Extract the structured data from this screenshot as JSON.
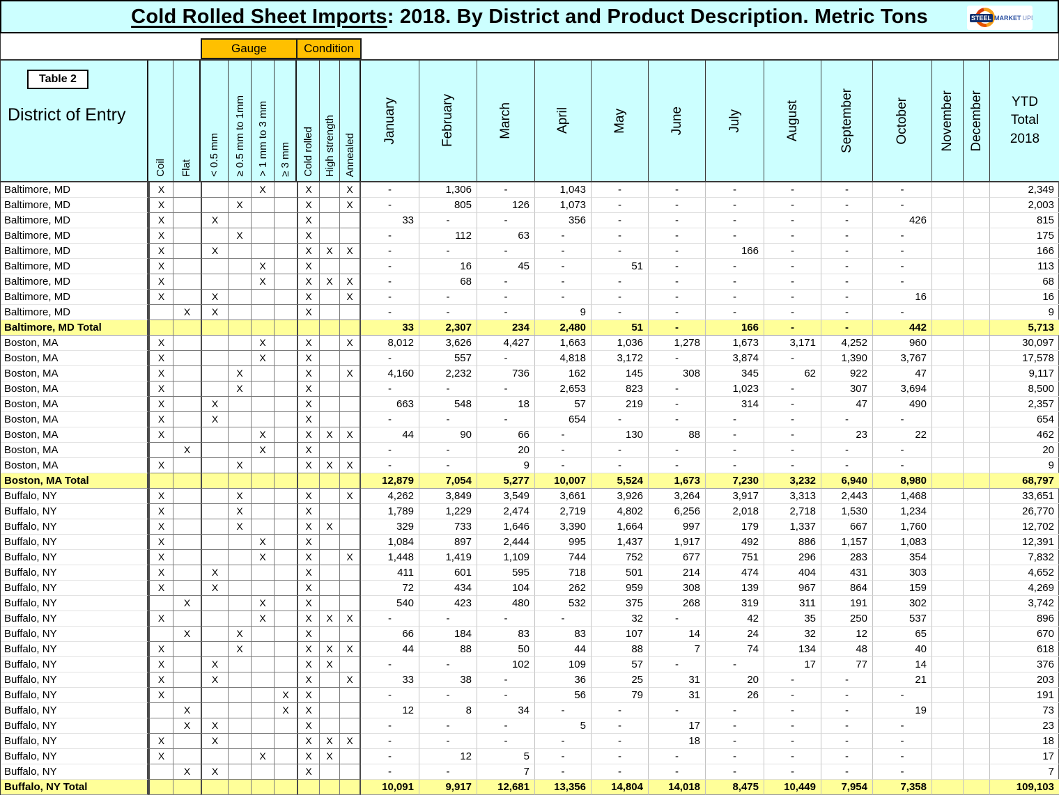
{
  "title": {
    "main": "Cold Rolled Sheet Imports",
    "rest": ": 2018. By District and Product Description. Metric Tons"
  },
  "logo": {
    "steel": "STEEL",
    "market": "MARKET",
    "update": "UPDATE"
  },
  "table_label": "Table 2",
  "group_headers": {
    "gauge": "Gauge",
    "condition": "Condition"
  },
  "flag_mark": "X",
  "colors": {
    "header_bg": "#CCFFFF",
    "total_row_bg": "#FFFF99",
    "group_header_bg": "#FFC000",
    "logo_navy": "#14306E",
    "logo_orange": "#E65300"
  },
  "columns": {
    "district": "District of Entry",
    "flags": [
      "Coil",
      "Flat",
      "< 0.5 mm",
      "≥ 0.5 mm to 1mm",
      "> 1 mm to 3 mm",
      "≥ 3 mm",
      "Cold rolled",
      "High strength",
      "Annealed"
    ],
    "months": [
      "January",
      "February",
      "March",
      "April",
      "May",
      "June",
      "July",
      "August",
      "September",
      "October",
      "November",
      "December"
    ],
    "ytd_lines": [
      "YTD",
      "Total",
      "2018"
    ]
  },
  "sections": [
    {
      "name": "Baltimore, MD",
      "total_label": "Baltimore, MD Total",
      "rows": [
        {
          "flags": [
            1,
            0,
            0,
            0,
            1,
            0,
            1,
            0,
            1
          ],
          "values": [
            "-",
            "1,306",
            "-",
            "1,043",
            "-",
            "-",
            "-",
            "-",
            "-",
            "-",
            "",
            ""
          ],
          "ytd": "2,349"
        },
        {
          "flags": [
            1,
            0,
            0,
            1,
            0,
            0,
            1,
            0,
            1
          ],
          "values": [
            "-",
            "805",
            "126",
            "1,073",
            "-",
            "-",
            "-",
            "-",
            "-",
            "-",
            "",
            ""
          ],
          "ytd": "2,003"
        },
        {
          "flags": [
            1,
            0,
            1,
            0,
            0,
            0,
            1,
            0,
            0
          ],
          "values": [
            "33",
            "-",
            "-",
            "356",
            "-",
            "-",
            "-",
            "-",
            "-",
            "426",
            "",
            ""
          ],
          "ytd": "815"
        },
        {
          "flags": [
            1,
            0,
            0,
            1,
            0,
            0,
            1,
            0,
            0
          ],
          "values": [
            "-",
            "112",
            "63",
            "-",
            "-",
            "-",
            "-",
            "-",
            "-",
            "-",
            "",
            ""
          ],
          "ytd": "175"
        },
        {
          "flags": [
            1,
            0,
            1,
            0,
            0,
            0,
            1,
            1,
            1
          ],
          "values": [
            "-",
            "-",
            "-",
            "-",
            "-",
            "-",
            "166",
            "-",
            "-",
            "-",
            "",
            ""
          ],
          "ytd": "166"
        },
        {
          "flags": [
            1,
            0,
            0,
            0,
            1,
            0,
            1,
            0,
            0
          ],
          "values": [
            "-",
            "16",
            "45",
            "-",
            "51",
            "-",
            "-",
            "-",
            "-",
            "-",
            "",
            ""
          ],
          "ytd": "113"
        },
        {
          "flags": [
            1,
            0,
            0,
            0,
            1,
            0,
            1,
            1,
            1
          ],
          "values": [
            "-",
            "68",
            "-",
            "-",
            "-",
            "-",
            "-",
            "-",
            "-",
            "-",
            "",
            ""
          ],
          "ytd": "68"
        },
        {
          "flags": [
            1,
            0,
            1,
            0,
            0,
            0,
            1,
            0,
            1
          ],
          "values": [
            "-",
            "-",
            "-",
            "-",
            "-",
            "-",
            "-",
            "-",
            "-",
            "16",
            "",
            ""
          ],
          "ytd": "16"
        },
        {
          "flags": [
            0,
            1,
            1,
            0,
            0,
            0,
            1,
            0,
            0
          ],
          "values": [
            "-",
            "-",
            "-",
            "9",
            "-",
            "-",
            "-",
            "-",
            "-",
            "-",
            "",
            ""
          ],
          "ytd": "9"
        }
      ],
      "total": {
        "values": [
          "33",
          "2,307",
          "234",
          "2,480",
          "51",
          "-",
          "166",
          "-",
          "-",
          "442",
          "",
          ""
        ],
        "ytd": "5,713"
      }
    },
    {
      "name": "Boston, MA",
      "total_label": "Boston, MA Total",
      "rows": [
        {
          "flags": [
            1,
            0,
            0,
            0,
            1,
            0,
            1,
            0,
            1
          ],
          "values": [
            "8,012",
            "3,626",
            "4,427",
            "1,663",
            "1,036",
            "1,278",
            "1,673",
            "3,171",
            "4,252",
            "960",
            "",
            ""
          ],
          "ytd": "30,097"
        },
        {
          "flags": [
            1,
            0,
            0,
            0,
            1,
            0,
            1,
            0,
            0
          ],
          "values": [
            "-",
            "557",
            "-",
            "4,818",
            "3,172",
            "-",
            "3,874",
            "-",
            "1,390",
            "3,767",
            "",
            ""
          ],
          "ytd": "17,578"
        },
        {
          "flags": [
            1,
            0,
            0,
            1,
            0,
            0,
            1,
            0,
            1
          ],
          "values": [
            "4,160",
            "2,232",
            "736",
            "162",
            "145",
            "308",
            "345",
            "62",
            "922",
            "47",
            "",
            ""
          ],
          "ytd": "9,117"
        },
        {
          "flags": [
            1,
            0,
            0,
            1,
            0,
            0,
            1,
            0,
            0
          ],
          "values": [
            "-",
            "-",
            "-",
            "2,653",
            "823",
            "-",
            "1,023",
            "-",
            "307",
            "3,694",
            "",
            ""
          ],
          "ytd": "8,500"
        },
        {
          "flags": [
            1,
            0,
            1,
            0,
            0,
            0,
            1,
            0,
            0
          ],
          "values": [
            "663",
            "548",
            "18",
            "57",
            "219",
            "-",
            "314",
            "-",
            "47",
            "490",
            "",
            ""
          ],
          "ytd": "2,357"
        },
        {
          "flags": [
            1,
            0,
            1,
            0,
            0,
            0,
            1,
            0,
            0
          ],
          "values": [
            "-",
            "-",
            "-",
            "654",
            "-",
            "-",
            "-",
            "-",
            "-",
            "-",
            "",
            ""
          ],
          "ytd": "654"
        },
        {
          "flags": [
            1,
            0,
            0,
            0,
            1,
            0,
            1,
            1,
            1
          ],
          "values": [
            "44",
            "90",
            "66",
            "-",
            "130",
            "88",
            "-",
            "-",
            "23",
            "22",
            "",
            ""
          ],
          "ytd": "462"
        },
        {
          "flags": [
            0,
            1,
            0,
            0,
            1,
            0,
            1,
            0,
            0
          ],
          "values": [
            "-",
            "-",
            "20",
            "-",
            "-",
            "-",
            "-",
            "-",
            "-",
            "-",
            "",
            ""
          ],
          "ytd": "20"
        },
        {
          "flags": [
            1,
            0,
            0,
            1,
            0,
            0,
            1,
            1,
            1
          ],
          "values": [
            "-",
            "-",
            "9",
            "-",
            "-",
            "-",
            "-",
            "-",
            "-",
            "-",
            "",
            ""
          ],
          "ytd": "9"
        }
      ],
      "total": {
        "values": [
          "12,879",
          "7,054",
          "5,277",
          "10,007",
          "5,524",
          "1,673",
          "7,230",
          "3,232",
          "6,940",
          "8,980",
          "",
          ""
        ],
        "ytd": "68,797"
      }
    },
    {
      "name": "Buffalo, NY",
      "total_label": "Buffalo, NY Total",
      "rows": [
        {
          "flags": [
            1,
            0,
            0,
            1,
            0,
            0,
            1,
            0,
            1
          ],
          "values": [
            "4,262",
            "3,849",
            "3,549",
            "3,661",
            "3,926",
            "3,264",
            "3,917",
            "3,313",
            "2,443",
            "1,468",
            "",
            ""
          ],
          "ytd": "33,651"
        },
        {
          "flags": [
            1,
            0,
            0,
            1,
            0,
            0,
            1,
            0,
            0
          ],
          "values": [
            "1,789",
            "1,229",
            "2,474",
            "2,719",
            "4,802",
            "6,256",
            "2,018",
            "2,718",
            "1,530",
            "1,234",
            "",
            ""
          ],
          "ytd": "26,770"
        },
        {
          "flags": [
            1,
            0,
            0,
            1,
            0,
            0,
            1,
            1,
            0
          ],
          "values": [
            "329",
            "733",
            "1,646",
            "3,390",
            "1,664",
            "997",
            "179",
            "1,337",
            "667",
            "1,760",
            "",
            ""
          ],
          "ytd": "12,702"
        },
        {
          "flags": [
            1,
            0,
            0,
            0,
            1,
            0,
            1,
            0,
            0
          ],
          "values": [
            "1,084",
            "897",
            "2,444",
            "995",
            "1,437",
            "1,917",
            "492",
            "886",
            "1,157",
            "1,083",
            "",
            ""
          ],
          "ytd": "12,391"
        },
        {
          "flags": [
            1,
            0,
            0,
            0,
            1,
            0,
            1,
            0,
            1
          ],
          "values": [
            "1,448",
            "1,419",
            "1,109",
            "744",
            "752",
            "677",
            "751",
            "296",
            "283",
            "354",
            "",
            ""
          ],
          "ytd": "7,832"
        },
        {
          "flags": [
            1,
            0,
            1,
            0,
            0,
            0,
            1,
            0,
            0
          ],
          "values": [
            "411",
            "601",
            "595",
            "718",
            "501",
            "214",
            "474",
            "404",
            "431",
            "303",
            "",
            ""
          ],
          "ytd": "4,652"
        },
        {
          "flags": [
            1,
            0,
            1,
            0,
            0,
            0,
            1,
            0,
            0
          ],
          "values": [
            "72",
            "434",
            "104",
            "262",
            "959",
            "308",
            "139",
            "967",
            "864",
            "159",
            "",
            ""
          ],
          "ytd": "4,269"
        },
        {
          "flags": [
            0,
            1,
            0,
            0,
            1,
            0,
            1,
            0,
            0
          ],
          "values": [
            "540",
            "423",
            "480",
            "532",
            "375",
            "268",
            "319",
            "311",
            "191",
            "302",
            "",
            ""
          ],
          "ytd": "3,742"
        },
        {
          "flags": [
            1,
            0,
            0,
            0,
            1,
            0,
            1,
            1,
            1
          ],
          "values": [
            "-",
            "-",
            "-",
            "-",
            "32",
            "-",
            "42",
            "35",
            "250",
            "537",
            "",
            ""
          ],
          "ytd": "896"
        },
        {
          "flags": [
            0,
            1,
            0,
            1,
            0,
            0,
            1,
            0,
            0
          ],
          "values": [
            "66",
            "184",
            "83",
            "83",
            "107",
            "14",
            "24",
            "32",
            "12",
            "65",
            "",
            ""
          ],
          "ytd": "670"
        },
        {
          "flags": [
            1,
            0,
            0,
            1,
            0,
            0,
            1,
            1,
            1
          ],
          "values": [
            "44",
            "88",
            "50",
            "44",
            "88",
            "7",
            "74",
            "134",
            "48",
            "40",
            "",
            ""
          ],
          "ytd": "618"
        },
        {
          "flags": [
            1,
            0,
            1,
            0,
            0,
            0,
            1,
            1,
            0
          ],
          "values": [
            "-",
            "-",
            "102",
            "109",
            "57",
            "-",
            "-",
            "17",
            "77",
            "14",
            "",
            ""
          ],
          "ytd": "376"
        },
        {
          "flags": [
            1,
            0,
            1,
            0,
            0,
            0,
            1,
            0,
            1
          ],
          "values": [
            "33",
            "38",
            "-",
            "36",
            "25",
            "31",
            "20",
            "-",
            "-",
            "21",
            "",
            ""
          ],
          "ytd": "203"
        },
        {
          "flags": [
            1,
            0,
            0,
            0,
            0,
            1,
            1,
            0,
            0
          ],
          "values": [
            "-",
            "-",
            "-",
            "56",
            "79",
            "31",
            "26",
            "-",
            "-",
            "-",
            "",
            ""
          ],
          "ytd": "191"
        },
        {
          "flags": [
            0,
            1,
            0,
            0,
            0,
            1,
            1,
            0,
            0
          ],
          "values": [
            "12",
            "8",
            "34",
            "-",
            "-",
            "-",
            "-",
            "-",
            "-",
            "19",
            "",
            ""
          ],
          "ytd": "73"
        },
        {
          "flags": [
            0,
            1,
            1,
            0,
            0,
            0,
            1,
            0,
            0
          ],
          "values": [
            "-",
            "-",
            "-",
            "5",
            "-",
            "17",
            "-",
            "-",
            "-",
            "-",
            "",
            ""
          ],
          "ytd": "23"
        },
        {
          "flags": [
            1,
            0,
            1,
            0,
            0,
            0,
            1,
            1,
            1
          ],
          "values": [
            "-",
            "-",
            "-",
            "-",
            "-",
            "18",
            "-",
            "-",
            "-",
            "-",
            "",
            ""
          ],
          "ytd": "18"
        },
        {
          "flags": [
            1,
            0,
            0,
            0,
            1,
            0,
            1,
            1,
            0
          ],
          "values": [
            "-",
            "12",
            "5",
            "-",
            "-",
            "-",
            "-",
            "-",
            "-",
            "-",
            "",
            ""
          ],
          "ytd": "17"
        },
        {
          "flags": [
            0,
            1,
            1,
            0,
            0,
            0,
            1,
            0,
            0
          ],
          "values": [
            "-",
            "-",
            "7",
            "-",
            "-",
            "-",
            "-",
            "-",
            "-",
            "-",
            "",
            ""
          ],
          "ytd": "7"
        }
      ],
      "total": {
        "values": [
          "10,091",
          "9,917",
          "12,681",
          "13,356",
          "14,804",
          "14,018",
          "8,475",
          "10,449",
          "7,954",
          "7,358",
          "",
          ""
        ],
        "ytd": "109,103"
      }
    }
  ]
}
